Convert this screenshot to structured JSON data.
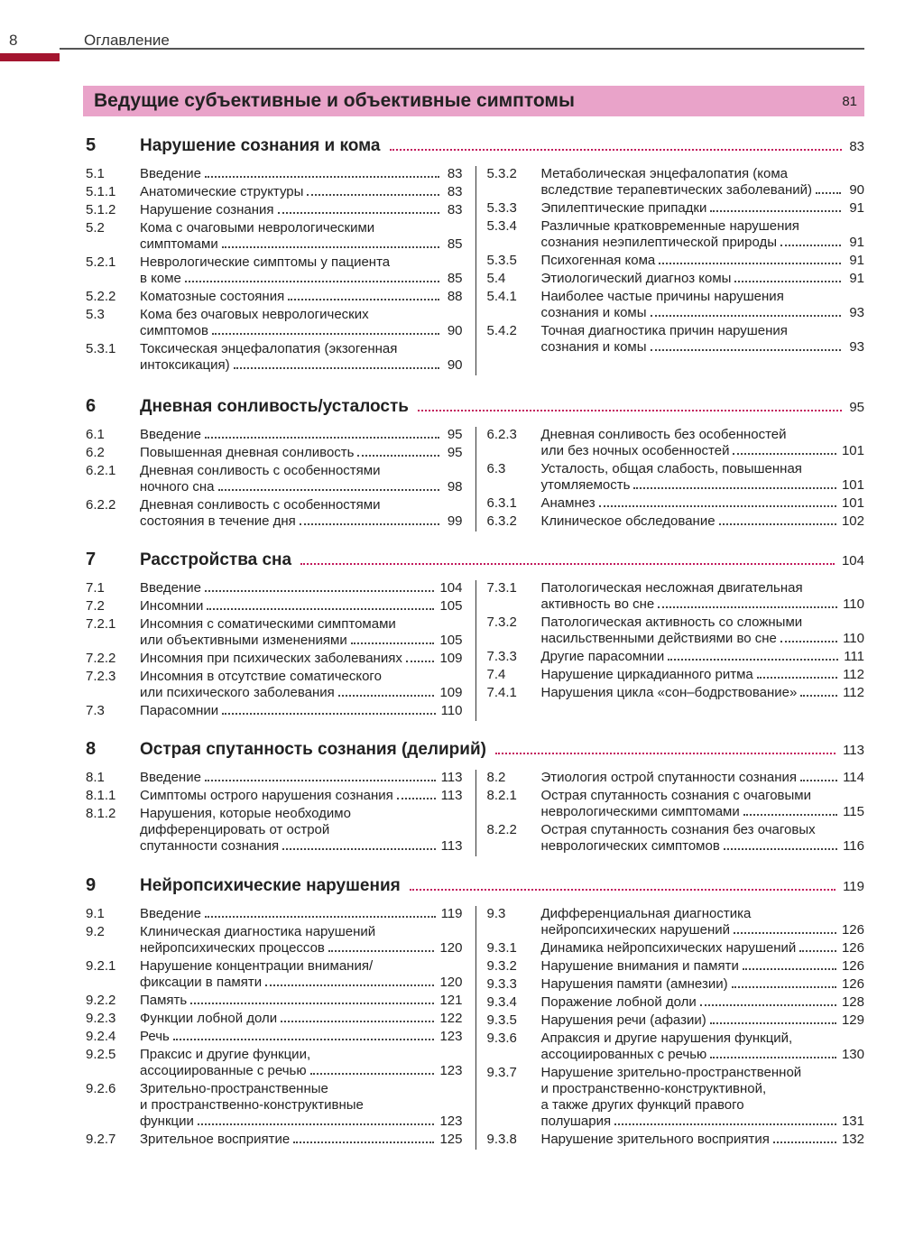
{
  "header": {
    "page_number": "8",
    "running_title": "Оглавление"
  },
  "banner": {
    "title": "Ведущие субъективные и объективные симптомы",
    "page": "81"
  },
  "colors": {
    "accent": "#a3152f",
    "banner": "#e9a3c9"
  },
  "sections": [
    {
      "num": "5",
      "title": "Нарушение сознания и кома",
      "page": "83",
      "left": [
        {
          "num": "5.1",
          "lines": [
            "Введение"
          ],
          "page": "83"
        },
        {
          "num": "5.1.1",
          "lines": [
            "Анатомические структуры"
          ],
          "page": "83"
        },
        {
          "num": "5.1.2",
          "lines": [
            "Нарушение сознания"
          ],
          "page": "83"
        },
        {
          "num": "5.2",
          "lines": [
            "Кома с очаговыми неврологическими",
            "симптомами"
          ],
          "page": "85"
        },
        {
          "num": "5.2.1",
          "lines": [
            "Неврологические симптомы у пациента",
            "в коме"
          ],
          "page": "85"
        },
        {
          "num": "5.2.2",
          "lines": [
            "Коматозные состояния"
          ],
          "page": "88"
        },
        {
          "num": "5.3",
          "lines": [
            "Кома без очаговых неврологических",
            "симптомов"
          ],
          "page": "90"
        },
        {
          "num": "5.3.1",
          "lines": [
            "Токсическая энцефалопатия (экзогенная",
            "интоксикация)"
          ],
          "page": "90"
        }
      ],
      "right": [
        {
          "num": "5.3.2",
          "lines": [
            "Метаболическая энцефалопатия (кома",
            "вследствие терапевтических заболеваний)"
          ],
          "page": "90"
        },
        {
          "num": "5.3.3",
          "lines": [
            "Эпилептические припадки"
          ],
          "page": "91"
        },
        {
          "num": "5.3.4",
          "lines": [
            "Различные кратковременные нарушения",
            "сознания неэпилептической природы"
          ],
          "page": "91"
        },
        {
          "num": "5.3.5",
          "lines": [
            "Психогенная кома"
          ],
          "page": "91"
        },
        {
          "num": "5.4",
          "lines": [
            "Этиологический диагноз комы"
          ],
          "page": "91"
        },
        {
          "num": "5.4.1",
          "lines": [
            "Наиболее частые причины нарушения",
            "сознания и комы"
          ],
          "page": "93"
        },
        {
          "num": "5.4.2",
          "lines": [
            "Точная диагностика причин нарушения",
            "сознания и комы"
          ],
          "page": "93"
        }
      ]
    },
    {
      "num": "6",
      "title": "Дневная сонливость/усталость",
      "page": "95",
      "left": [
        {
          "num": "6.1",
          "lines": [
            "Введение"
          ],
          "page": "95"
        },
        {
          "num": "6.2",
          "lines": [
            "Повышенная дневная сонливость"
          ],
          "page": "95"
        },
        {
          "num": "6.2.1",
          "lines": [
            "Дневная сонливость с особенностями",
            "ночного сна"
          ],
          "page": "98"
        },
        {
          "num": "6.2.2",
          "lines": [
            "Дневная сонливость с особенностями",
            "состояния в течение дня"
          ],
          "page": "99"
        }
      ],
      "right": [
        {
          "num": "6.2.3",
          "lines": [
            "Дневная сонливость без особенностей",
            "или без ночных особенностей"
          ],
          "page": "101"
        },
        {
          "num": "6.3",
          "lines": [
            "Усталость, общая слабость, повышенная",
            "утомляемость"
          ],
          "page": "101"
        },
        {
          "num": "6.3.1",
          "lines": [
            "Анамнез"
          ],
          "page": "101"
        },
        {
          "num": "6.3.2",
          "lines": [
            "Клиническое обследование"
          ],
          "page": "102"
        }
      ]
    },
    {
      "num": "7",
      "title": "Расстройства сна",
      "page": "104",
      "left": [
        {
          "num": "7.1",
          "lines": [
            "Введение"
          ],
          "page": "104"
        },
        {
          "num": "7.2",
          "lines": [
            "Инсомнии"
          ],
          "page": "105"
        },
        {
          "num": "7.2.1",
          "lines": [
            "Инсомния с соматическими симптомами",
            "или объективными изменениями"
          ],
          "page": "105"
        },
        {
          "num": "7.2.2",
          "lines": [
            "Инсомния при психических заболеваниях"
          ],
          "page": "109"
        },
        {
          "num": "7.2.3",
          "lines": [
            "Инсомния в отсутствие соматического",
            "или психического заболевания"
          ],
          "page": "109"
        },
        {
          "num": "7.3",
          "lines": [
            "Парасомнии"
          ],
          "page": "110"
        }
      ],
      "right": [
        {
          "num": "7.3.1",
          "lines": [
            "Патологическая несложная двигательная",
            "активность во сне"
          ],
          "page": "110"
        },
        {
          "num": "7.3.2",
          "lines": [
            "Патологическая активность со сложными",
            "насильственными действиями во сне"
          ],
          "page": "110"
        },
        {
          "num": "7.3.3",
          "lines": [
            "Другие парасомнии"
          ],
          "page": "111"
        },
        {
          "num": "7.4",
          "lines": [
            "Нарушение циркадианного ритма"
          ],
          "page": "112"
        },
        {
          "num": "7.4.1",
          "lines": [
            "Нарушения цикла «сон–бодрствование»"
          ],
          "page": "112"
        }
      ]
    },
    {
      "num": "8",
      "title": "Острая спутанность сознания (делирий)",
      "page": "113",
      "left": [
        {
          "num": "8.1",
          "lines": [
            "Введение"
          ],
          "page": "113"
        },
        {
          "num": "8.1.1",
          "lines": [
            "Симптомы острого нарушения сознания"
          ],
          "page": "113"
        },
        {
          "num": "8.1.2",
          "lines": [
            "Нарушения, которые необходимо",
            "дифференцировать от острой",
            "спутанности сознания"
          ],
          "page": "113"
        }
      ],
      "right": [
        {
          "num": "8.2",
          "lines": [
            "Этиология острой спутанности сознания"
          ],
          "page": "114"
        },
        {
          "num": "8.2.1",
          "lines": [
            "Острая спутанность сознания с очаговыми",
            "неврологическими симптомами"
          ],
          "page": "115"
        },
        {
          "num": "8.2.2",
          "lines": [
            "Острая спутанность сознания без очаговых",
            "неврологических симптомов"
          ],
          "page": "116"
        }
      ]
    },
    {
      "num": "9",
      "title": "Нейропсихические нарушения",
      "page": "119",
      "left": [
        {
          "num": "9.1",
          "lines": [
            "Введение"
          ],
          "page": "119"
        },
        {
          "num": "9.2",
          "lines": [
            "Клиническая диагностика нарушений",
            "нейропсихических процессов"
          ],
          "page": "120"
        },
        {
          "num": "9.2.1",
          "lines": [
            "Нарушение концентрации внимания/",
            "фиксации в памяти"
          ],
          "page": "120"
        },
        {
          "num": "9.2.2",
          "lines": [
            "Память"
          ],
          "page": "121"
        },
        {
          "num": "9.2.3",
          "lines": [
            "Функции лобной доли"
          ],
          "page": "122"
        },
        {
          "num": "9.2.4",
          "lines": [
            "Речь"
          ],
          "page": "123"
        },
        {
          "num": "9.2.5",
          "lines": [
            "Праксис и другие функции,",
            "ассоциированные с речью"
          ],
          "page": "123"
        },
        {
          "num": "9.2.6",
          "lines": [
            "Зрительно-пространственные",
            "и пространственно-конструктивные",
            "функции"
          ],
          "page": "123"
        },
        {
          "num": "9.2.7",
          "lines": [
            "Зрительное восприятие"
          ],
          "page": "125"
        }
      ],
      "right": [
        {
          "num": "9.3",
          "lines": [
            "Дифференциальная диагностика",
            "нейропсихических нарушений"
          ],
          "page": "126"
        },
        {
          "num": "9.3.1",
          "lines": [
            "Динамика нейропсихических нарушений"
          ],
          "page": "126"
        },
        {
          "num": "9.3.2",
          "lines": [
            "Нарушение внимания и памяти"
          ],
          "page": "126"
        },
        {
          "num": "9.3.3",
          "lines": [
            "Нарушения памяти (амнезии)"
          ],
          "page": "126"
        },
        {
          "num": "9.3.4",
          "lines": [
            "Поражение лобной доли"
          ],
          "page": "128"
        },
        {
          "num": "9.3.5",
          "lines": [
            "Нарушения речи (афазии)"
          ],
          "page": "129"
        },
        {
          "num": "9.3.6",
          "lines": [
            "Апраксия и другие нарушения функций,",
            "ассоциированных с речью"
          ],
          "page": "130"
        },
        {
          "num": "9.3.7",
          "lines": [
            "Нарушение зрительно-пространственной",
            "и пространственно-конструктивной,",
            "а также других функций правого",
            "полушария"
          ],
          "page": "131"
        },
        {
          "num": "9.3.8",
          "lines": [
            "Нарушение зрительного восприятия"
          ],
          "page": "132"
        }
      ]
    }
  ]
}
